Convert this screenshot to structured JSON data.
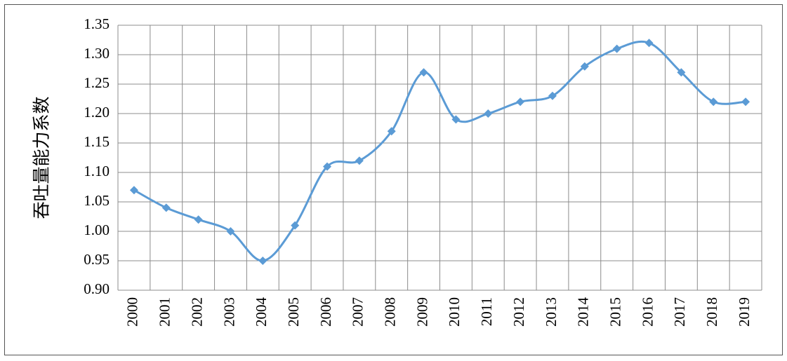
{
  "chart_data": {
    "type": "line",
    "y_label": "吞吐量能力系数",
    "categories": [
      "2000",
      "2001",
      "2002",
      "2003",
      "2004",
      "2005",
      "2006",
      "2007",
      "2008",
      "2009",
      "2010",
      "2011",
      "2012",
      "2013",
      "2014",
      "2015",
      "2016",
      "2017",
      "2018",
      "2019"
    ],
    "values": [
      1.07,
      1.04,
      1.02,
      1.0,
      0.95,
      1.01,
      1.11,
      1.12,
      1.17,
      1.27,
      1.19,
      1.2,
      1.22,
      1.23,
      1.28,
      1.31,
      1.32,
      1.27,
      1.22,
      1.22
    ],
    "color": "#5b9bd5",
    "ylim": [
      0.9,
      1.35
    ],
    "yticks": [
      {
        "value": 0.9,
        "label": "0.90"
      },
      {
        "value": 0.95,
        "label": "0.95"
      },
      {
        "value": 1.0,
        "label": "1.00"
      },
      {
        "value": 1.05,
        "label": "1.05"
      },
      {
        "value": 1.1,
        "label": "1.10"
      },
      {
        "value": 1.15,
        "label": "1.15"
      },
      {
        "value": 1.2,
        "label": "1.20"
      },
      {
        "value": 1.25,
        "label": "1.25"
      },
      {
        "value": 1.3,
        "label": "1.30"
      },
      {
        "value": 1.35,
        "label": "1.35"
      }
    ],
    "grid": true
  }
}
